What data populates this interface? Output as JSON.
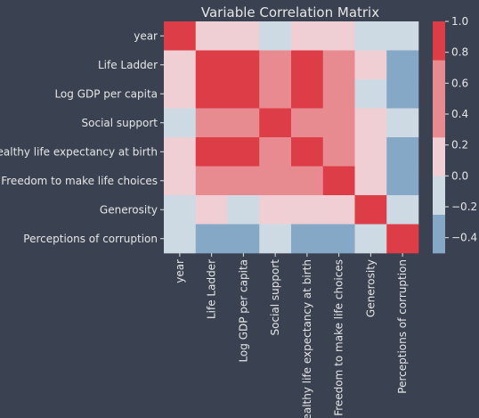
{
  "chart_data": {
    "type": "heatmap",
    "title": "Variable Correlation Matrix",
    "labels": [
      "year",
      "Life Ladder",
      "Log GDP per capita",
      "Social support",
      "Healthy life expectancy at birth",
      "Freedom to make life choices",
      "Generosity",
      "Perceptions of corruption"
    ],
    "matrix": [
      [
        1.0,
        0.2,
        0.2,
        -0.1,
        0.2,
        0.2,
        -0.1,
        -0.1
      ],
      [
        0.2,
        1.0,
        0.8,
        0.7,
        0.75,
        0.5,
        0.2,
        -0.4
      ],
      [
        0.2,
        0.8,
        1.0,
        0.7,
        0.85,
        0.4,
        -0.1,
        -0.4
      ],
      [
        -0.1,
        0.7,
        0.7,
        1.0,
        0.6,
        0.4,
        0.1,
        -0.2
      ],
      [
        0.2,
        0.75,
        0.85,
        0.6,
        1.0,
        0.4,
        0.1,
        -0.35
      ],
      [
        0.2,
        0.5,
        0.4,
        0.4,
        0.4,
        1.0,
        0.2,
        -0.45
      ],
      [
        -0.1,
        0.2,
        -0.1,
        0.1,
        0.1,
        0.2,
        1.0,
        -0.2
      ],
      [
        -0.1,
        -0.4,
        -0.4,
        -0.2,
        -0.35,
        -0.45,
        -0.2,
        1.0
      ]
    ],
    "colorbar": {
      "ticks": [
        1.0,
        0.8,
        0.6,
        0.4,
        0.2,
        0.0,
        -0.2,
        -0.4
      ],
      "tick_labels": [
        "1.0",
        "0.8",
        "0.6",
        "0.4",
        "0.2",
        "0.0",
        "−0.2",
        "−0.4"
      ],
      "range": [
        -0.5,
        1.0
      ],
      "bins": [
        {
          "min": -0.5,
          "max": -0.25,
          "color": "#85a8c6"
        },
        {
          "min": -0.25,
          "max": 0.0,
          "color": "#cdd9e3"
        },
        {
          "min": 0.0,
          "max": 0.25,
          "color": "#efcfd3"
        },
        {
          "min": 0.25,
          "max": 0.5,
          "color": "#e88b91"
        },
        {
          "min": 0.5,
          "max": 0.75,
          "color": "#e88b91"
        },
        {
          "min": 0.75,
          "max": 1.0,
          "color": "#dc3d46"
        }
      ]
    }
  },
  "colors": {
    "background": "#3a4150",
    "text": "#e6e6e6"
  }
}
